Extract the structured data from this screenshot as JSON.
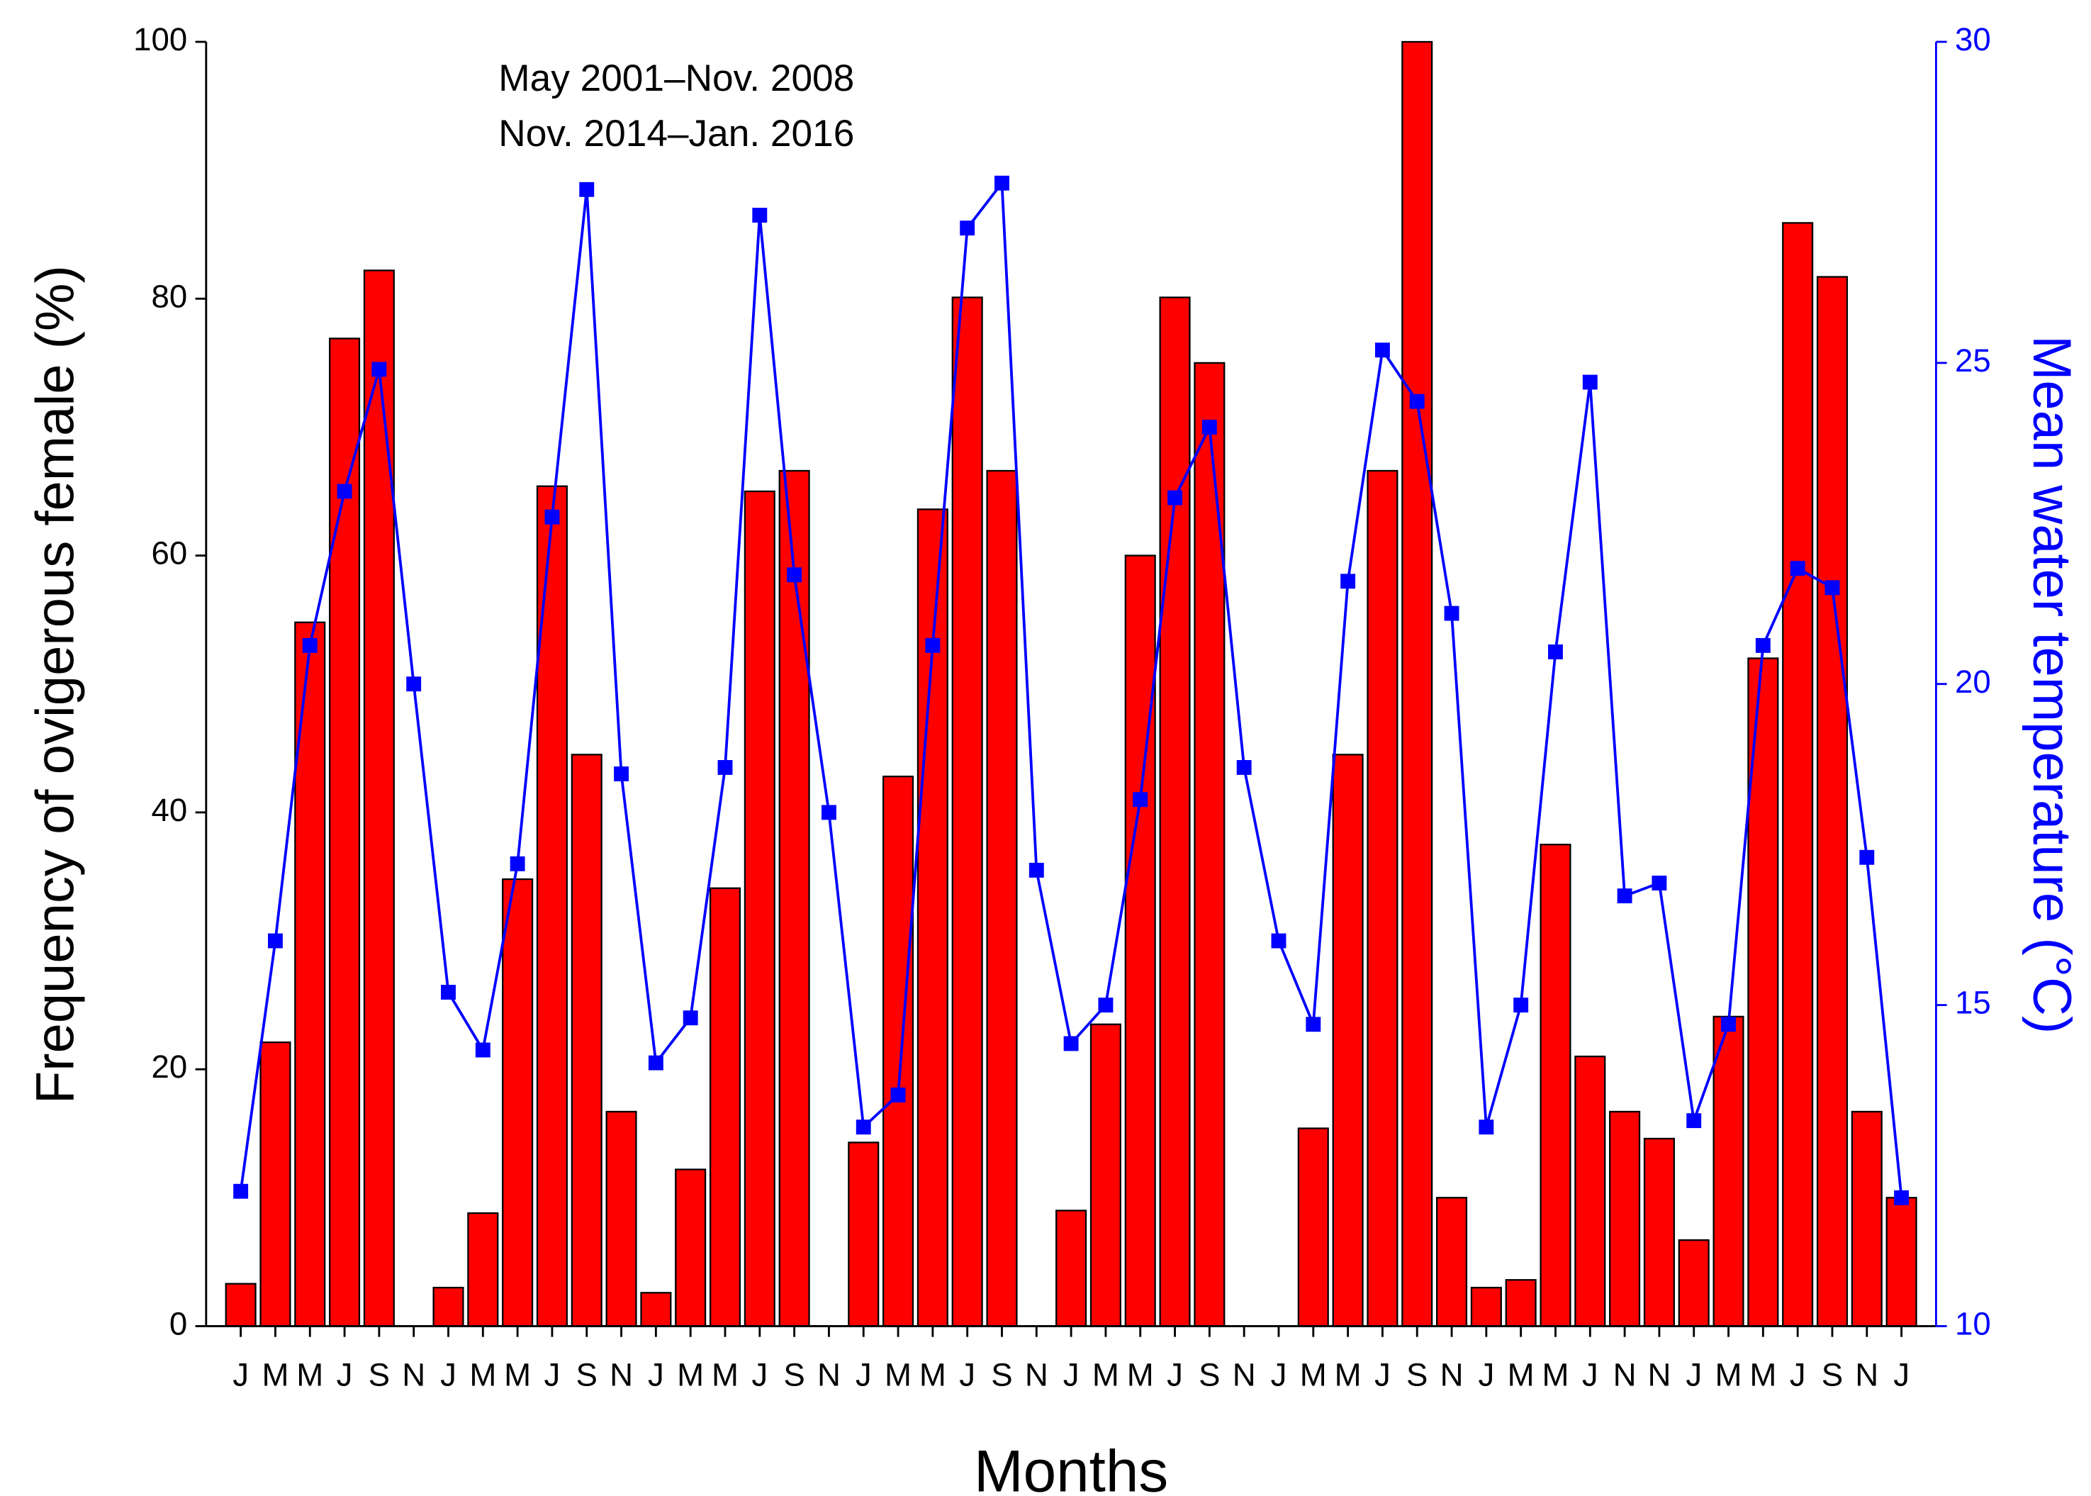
{
  "chart_data": {
    "type": "bar",
    "annotations": [
      "May 2001–Nov. 2008",
      "Nov. 2014–Jan. 2016"
    ],
    "x_label": "Months",
    "y_label": "Frequency of ovigerous female (%)",
    "y2_label": "Mean water temperature (°C)",
    "categories": [
      "J",
      "M",
      "M",
      "J",
      "S",
      "N",
      "J",
      "M",
      "M",
      "J",
      "S",
      "N",
      "J",
      "M",
      "M",
      "J",
      "S",
      "N",
      "J",
      "M",
      "M",
      "J",
      "S",
      "N",
      "J",
      "M",
      "M",
      "J",
      "S",
      "N",
      "J",
      "M",
      "M",
      "J",
      "S",
      "N",
      "J",
      "M",
      "M",
      "J",
      "N",
      "N",
      "J",
      "M",
      "M",
      "J",
      "S",
      "N",
      "J"
    ],
    "series": [
      {
        "name": "Frequency of ovigerous female",
        "type": "bar",
        "color": "#ff0000",
        "axis": "y",
        "values": [
          3.3,
          22.1,
          54.8,
          76.9,
          82.2,
          0,
          3.0,
          8.8,
          34.8,
          65.4,
          44.5,
          16.7,
          2.6,
          12.2,
          34.1,
          65.0,
          66.6,
          0,
          14.3,
          42.8,
          63.6,
          80.1,
          66.6,
          0,
          9.0,
          23.5,
          60.0,
          80.1,
          75.0,
          0,
          0,
          15.4,
          44.5,
          66.6,
          100,
          10.0,
          3.0,
          3.6,
          37.5,
          21.0,
          16.7,
          14.6,
          6.7,
          24.1,
          52.0,
          85.9,
          81.7,
          16.7,
          10.0
        ]
      },
      {
        "name": "Mean water temperature",
        "type": "line",
        "color": "#0000ff",
        "axis": "y2",
        "values": [
          12.1,
          16.0,
          20.6,
          23.0,
          24.9,
          20.0,
          15.2,
          14.3,
          17.2,
          22.6,
          27.7,
          18.6,
          14.1,
          14.8,
          18.7,
          27.3,
          21.7,
          18.0,
          13.1,
          13.6,
          20.6,
          27.1,
          27.8,
          17.1,
          14.4,
          15.0,
          18.2,
          22.9,
          24.0,
          18.7,
          16.0,
          14.7,
          21.6,
          25.2,
          24.4,
          21.1,
          13.1,
          15.0,
          20.5,
          24.7,
          16.7,
          16.9,
          13.2,
          14.7,
          20.6,
          21.8,
          21.5,
          17.3,
          12.0
        ]
      }
    ],
    "ylim": [
      0,
      100
    ],
    "yticks": [
      0,
      20,
      40,
      60,
      80,
      100
    ],
    "y2lim": [
      10,
      30
    ],
    "y2ticks": [
      10,
      15,
      20,
      25,
      30
    ],
    "y2_color": "#0000ff"
  }
}
